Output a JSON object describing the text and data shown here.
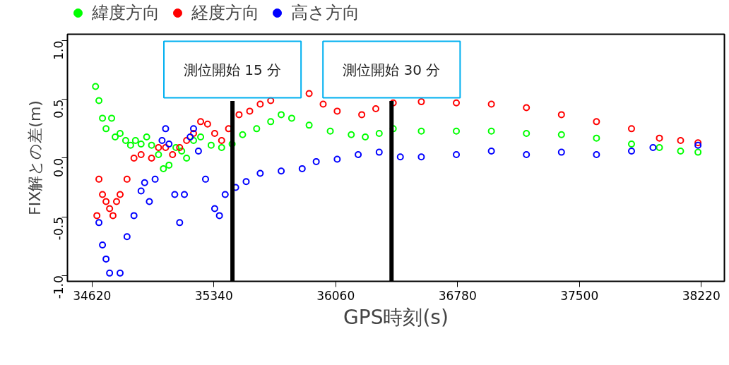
{
  "chart_data": {
    "type": "scatter",
    "xlabel": "GPS時刻(s)",
    "ylabel": "FIX解との差(m)",
    "xlim": [
      34475,
      38357
    ],
    "ylim": [
      -1.05,
      1.055
    ],
    "xticks": [
      34620,
      35340,
      36060,
      36780,
      37500,
      38220
    ],
    "yticks": [
      {
        "value": -1,
        "label": "-1.0"
      },
      {
        "value": -0.5,
        "label": "-0.5"
      },
      {
        "value": 0,
        "label": "0.0"
      },
      {
        "value": 0.5,
        "label": "0.5"
      },
      {
        "value": 1,
        "label": "1.0"
      }
    ],
    "marker": "circle",
    "grid": false,
    "legend": "top left",
    "ref_lines": [
      {
        "axis": "x",
        "value": 35450,
        "label": "測位開始 15 分",
        "color": "#000000"
      },
      {
        "axis": "x",
        "value": 36390,
        "label": "測位開始 30 分",
        "color": "#000000"
      }
    ],
    "series": [
      {
        "name": "緯度方向",
        "color": "#00ff00",
        "x": [
          34641,
          34661,
          34682,
          34703,
          34736,
          34757,
          34786,
          34819,
          34848,
          34877,
          34910,
          34943,
          34972,
          35013,
          35042,
          35075,
          35116,
          35150,
          35179,
          35220,
          35262,
          35324,
          35386,
          35448,
          35510,
          35593,
          35676,
          35738,
          35800,
          35903,
          36028,
          36152,
          36235,
          36317,
          36400,
          36566,
          36773,
          36980,
          37187,
          37394,
          37601,
          37808,
          37973,
          38098,
          38201
        ],
        "values": [
          0.61,
          0.49,
          0.34,
          0.25,
          0.34,
          0.18,
          0.21,
          0.15,
          0.11,
          0.15,
          0.12,
          0.18,
          0.11,
          0.03,
          -0.09,
          -0.06,
          0.09,
          0.06,
          0.0,
          0.15,
          0.18,
          0.11,
          0.09,
          0.12,
          0.2,
          0.25,
          0.31,
          0.37,
          0.34,
          0.28,
          0.23,
          0.2,
          0.18,
          0.21,
          0.25,
          0.23,
          0.23,
          0.23,
          0.21,
          0.2,
          0.17,
          0.12,
          0.09,
          0.06,
          0.05
        ]
      },
      {
        "name": "経度方向",
        "color": "#ff0000",
        "x": [
          34649,
          34661,
          34682,
          34703,
          34724,
          34744,
          34765,
          34786,
          34827,
          34868,
          34910,
          34972,
          35013,
          35055,
          35096,
          35138,
          35179,
          35220,
          35262,
          35303,
          35345,
          35386,
          35427,
          35489,
          35552,
          35614,
          35676,
          35738,
          35821,
          35903,
          35986,
          36069,
          36214,
          36297,
          36400,
          36566,
          36773,
          36980,
          37187,
          37394,
          37601,
          37808,
          37973,
          38098,
          38201
        ],
        "values": [
          -0.49,
          -0.18,
          -0.31,
          -0.37,
          -0.43,
          -0.49,
          -0.37,
          -0.31,
          -0.18,
          0.0,
          0.03,
          0.0,
          0.09,
          0.09,
          0.03,
          0.09,
          0.15,
          0.21,
          0.31,
          0.29,
          0.21,
          0.15,
          0.25,
          0.37,
          0.4,
          0.46,
          0.49,
          null,
          null,
          0.55,
          0.46,
          0.4,
          0.37,
          0.42,
          0.47,
          0.48,
          0.47,
          0.46,
          0.43,
          0.37,
          0.31,
          0.25,
          0.17,
          0.15,
          0.13
        ]
      },
      {
        "name": "高さ方向",
        "color": "#0000ff",
        "x": [
          34661,
          34682,
          34703,
          34724,
          34786,
          34827,
          34868,
          34910,
          34931,
          34959,
          34993,
          35034,
          35055,
          35075,
          35109,
          35138,
          35166,
          35200,
          35220,
          35249,
          35291,
          35345,
          35373,
          35407,
          35469,
          35531,
          35614,
          35738,
          35862,
          35945,
          36069,
          36193,
          36317,
          36442,
          36566,
          36773,
          36980,
          37187,
          37394,
          37601,
          37808,
          37935,
          38201
        ],
        "values": [
          -0.55,
          -0.74,
          -0.86,
          -0.98,
          -0.98,
          -0.67,
          -0.49,
          -0.28,
          -0.21,
          -0.37,
          -0.18,
          0.15,
          0.25,
          0.12,
          -0.31,
          -0.55,
          -0.31,
          0.18,
          0.25,
          0.06,
          -0.18,
          -0.43,
          -0.49,
          -0.31,
          -0.25,
          -0.2,
          -0.13,
          -0.11,
          -0.09,
          -0.03,
          -0.01,
          0.03,
          0.05,
          0.01,
          0.01,
          0.03,
          0.06,
          0.03,
          0.05,
          0.03,
          0.06,
          0.09,
          0.11
        ]
      }
    ]
  }
}
